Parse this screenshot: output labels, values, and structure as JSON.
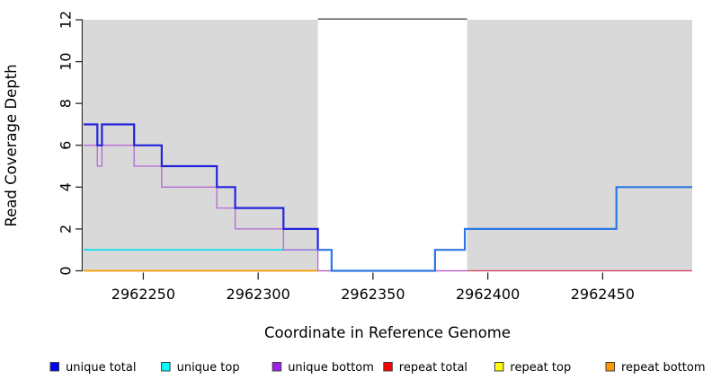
{
  "figure": {
    "xlabel": "Coordinate in Reference Genome",
    "ylabel": "Read Coverage Depth"
  },
  "chart_data": {
    "type": "line",
    "subtype": "step-coverage-plot",
    "title": "",
    "xlabel": "Coordinate in Reference Genome",
    "ylabel": "Read Coverage Depth",
    "xlim": [
      2962224,
      2962489
    ],
    "ylim": [
      0,
      12
    ],
    "x_ticks": [
      2962250,
      2962300,
      2962350,
      2962400,
      2962450
    ],
    "y_ticks": [
      0,
      2,
      4,
      6,
      8,
      10,
      12
    ],
    "grid": false,
    "region_fill": "#d9d9d9",
    "shaded_regions": [
      {
        "name": "unique-region-left",
        "x1": 2962224,
        "x2": 2962326
      },
      {
        "name": "unique-region-right",
        "x1": 2962391,
        "x2": 2962489
      }
    ],
    "repeat_region_marker": {
      "x1": 2962326,
      "x2": 2962391,
      "y": 12,
      "color": "#6a6a6a"
    },
    "series": [
      {
        "name": "unique top",
        "color": "#00dce6",
        "width": 1.6,
        "points": [
          [
            2962224,
            1
          ],
          [
            2962326,
            1
          ]
        ]
      },
      {
        "name": "repeat total",
        "color": "#d13d60",
        "width": 1.3,
        "points": [
          [
            2962326,
            0
          ],
          [
            2962489,
            0
          ]
        ]
      },
      {
        "name": "repeat bottom",
        "color": "#ff9b00",
        "width": 1.8,
        "points": [
          [
            2962224,
            0
          ],
          [
            2962326,
            0
          ]
        ]
      },
      {
        "name": "unique bottom",
        "color": "#b567d6",
        "width": 1.3,
        "points": [
          [
            2962224,
            6
          ],
          [
            2962230,
            6
          ],
          [
            2962230,
            5
          ],
          [
            2962232,
            5
          ],
          [
            2962232,
            6
          ],
          [
            2962246,
            6
          ],
          [
            2962246,
            5
          ],
          [
            2962258,
            5
          ],
          [
            2962258,
            4
          ],
          [
            2962282,
            4
          ],
          [
            2962282,
            3
          ],
          [
            2962290,
            3
          ],
          [
            2962290,
            2
          ],
          [
            2962311,
            2
          ],
          [
            2962311,
            1
          ],
          [
            2962326,
            1
          ],
          [
            2962326,
            0
          ],
          [
            2962391,
            0
          ]
        ]
      },
      {
        "name": "unique total",
        "color": "#2424dd",
        "width": 2.2,
        "points": [
          [
            2962224,
            7
          ],
          [
            2962230,
            7
          ],
          [
            2962230,
            6
          ],
          [
            2962232,
            6
          ],
          [
            2962232,
            7
          ],
          [
            2962246,
            7
          ],
          [
            2962246,
            6
          ],
          [
            2962258,
            6
          ],
          [
            2962258,
            5
          ],
          [
            2962282,
            5
          ],
          [
            2962282,
            4
          ],
          [
            2962290,
            4
          ],
          [
            2962290,
            3
          ],
          [
            2962311,
            3
          ],
          [
            2962311,
            2
          ],
          [
            2962326,
            2
          ],
          [
            2962326,
            1
          ]
        ]
      },
      {
        "name": "unique total (over unique top)",
        "color": "#2d78e2",
        "width": 2.2,
        "points": [
          [
            2962326,
            1
          ],
          [
            2962332,
            1
          ],
          [
            2962332,
            0
          ],
          [
            2962377,
            0
          ],
          [
            2962377,
            1
          ],
          [
            2962390,
            1
          ],
          [
            2962390,
            2
          ],
          [
            2962456,
            2
          ],
          [
            2962456,
            4
          ],
          [
            2962489,
            4
          ]
        ]
      }
    ],
    "legend": {
      "position": "bottom",
      "swatch_border": "#3c3c3c",
      "items": [
        {
          "label": "unique total",
          "color": "#0000ff"
        },
        {
          "label": "unique top",
          "color": "#00ffff"
        },
        {
          "label": "unique bottom",
          "color": "#a020f0"
        },
        {
          "label": "repeat total",
          "color": "#ff0000"
        },
        {
          "label": "repeat top",
          "color": "#ffff00"
        },
        {
          "label": "repeat bottom",
          "color": "#ff9900"
        }
      ]
    }
  }
}
